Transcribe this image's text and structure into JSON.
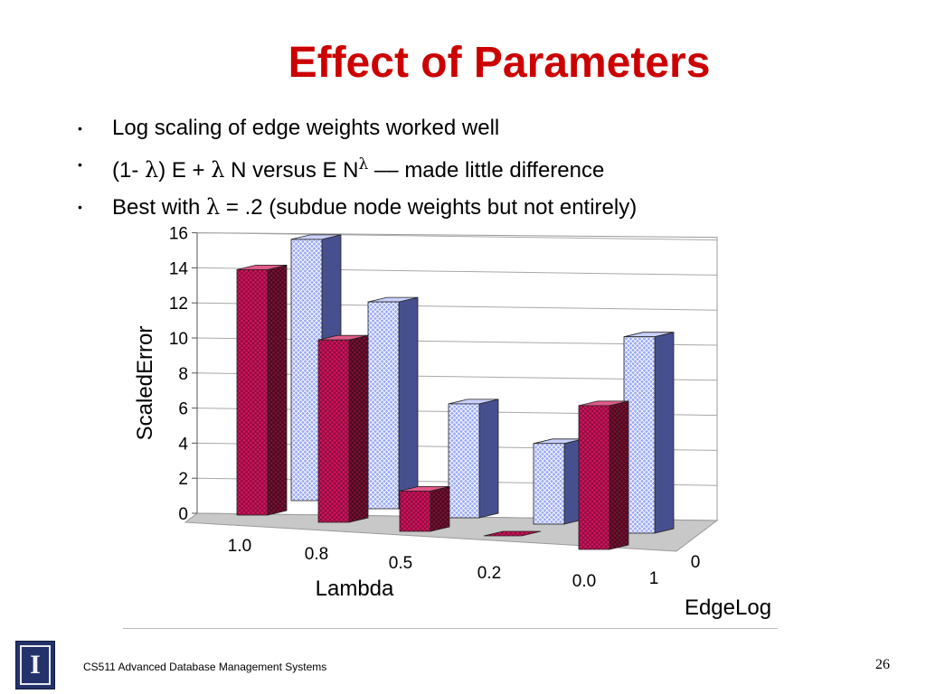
{
  "slide": {
    "title": "Effect of Parameters",
    "bullet_marker": "•",
    "bullets": [
      {
        "text": "Log scaling of edge weights worked well"
      },
      {
        "pre": "(1- ",
        "lambda": "λ",
        "mid1": ") E + ",
        "mid2": " N   versus   E N",
        "sup": "λ",
        "post": "   –– made little difference"
      },
      {
        "pre": "Best with ",
        "lambda": "λ",
        "post": " = .2 (subdue node weights but not entirely)"
      }
    ],
    "footer": {
      "course": "CS511 Advanced Database Management Systems",
      "page": "26",
      "logo_letter": "I"
    }
  },
  "chart_data": {
    "type": "bar",
    "subtype": "3d-clustered",
    "ylabel": "ScaledError",
    "xlabel": "Lambda",
    "zlabel": "EdgeLog",
    "categories": [
      "1.0",
      "0.8",
      "0.5",
      "0.2",
      "0.0"
    ],
    "ylim": [
      0,
      16
    ],
    "yticks": [
      0,
      2,
      4,
      6,
      8,
      10,
      12,
      14,
      16
    ],
    "grid": true,
    "series": [
      {
        "name": "1",
        "color": "#c8105a",
        "values": [
          14.0,
          10.4,
          2.3,
          0.2,
          8.2
        ]
      },
      {
        "name": "0",
        "color": "#8f9ff5",
        "values": [
          14.9,
          11.8,
          6.5,
          4.6,
          11.2
        ]
      }
    ]
  }
}
